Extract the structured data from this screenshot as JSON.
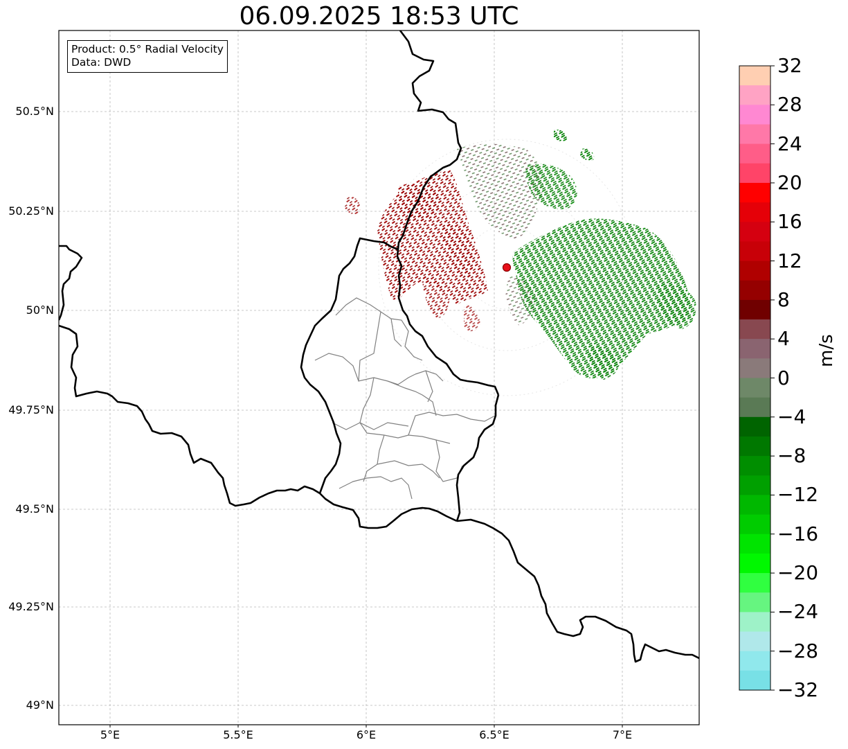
{
  "title": "06.09.2025 18:53 UTC",
  "info": {
    "product": "Product: 0.5° Radial Velocity",
    "data": "Data: DWD"
  },
  "axes": {
    "lon_ticks": [
      "5°E",
      "5.5°E",
      "6°E",
      "6.5°E",
      "7°E"
    ],
    "lat_ticks": [
      "50.5°N",
      "50.25°N",
      "50°N",
      "49.75°N",
      "49.5°N",
      "49.25°N",
      "49°N"
    ],
    "grid": true
  },
  "radar_site": {
    "lon": 6.55,
    "lat": 50.11,
    "color": "#e8101a"
  },
  "colorbar": {
    "label": "m/s",
    "ticks": [
      "32",
      "28",
      "24",
      "20",
      "16",
      "12",
      "8",
      "4",
      "0",
      "−4",
      "−8",
      "−12",
      "−16",
      "−20",
      "−24",
      "−28",
      "−32"
    ],
    "colors_top_to_bottom": [
      "#ffcfb2",
      "#ffa3c4",
      "#ff88d2",
      "#ff78a8",
      "#ff5d88",
      "#ff4468",
      "#ff0000",
      "#e50008",
      "#d50010",
      "#c80008",
      "#b00000",
      "#950000",
      "#700000",
      "#884850",
      "#8a6470",
      "#8a7a7a",
      "#6e8868",
      "#5a7a55",
      "#006400",
      "#007800",
      "#008e00",
      "#00a000",
      "#00b800",
      "#00cc00",
      "#00e400",
      "#00f800",
      "#30ff40",
      "#66f580",
      "#9ef2c8",
      "#b0e8ea",
      "#90e8ec",
      "#78e0e6"
    ],
    "min": -32,
    "max": 32
  },
  "legend_colors": {
    "outbound_strong": "#b30000",
    "outbound_weak": "#7a5050",
    "near_zero": "#6e8868",
    "inbound": "#008000",
    "border_country": "#000000",
    "border_region": "#808080"
  }
}
